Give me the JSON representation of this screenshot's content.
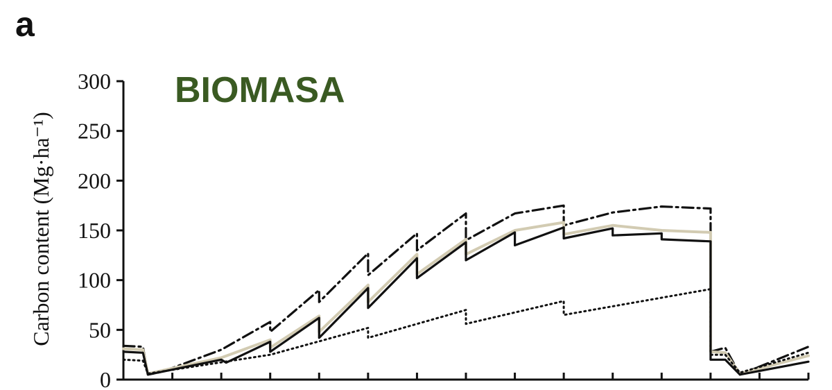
{
  "panel_label": "a",
  "colors": {
    "title": "#3a5a22",
    "axis": "#111111",
    "series_black": "#111111",
    "series_beige": "#d2cbb2"
  },
  "chart_data": {
    "type": "line",
    "title": "BIOMASA",
    "ylabel": "Carbon content (Mg·ha⁻¹)",
    "xlabel": "",
    "ylim": [
      0,
      300
    ],
    "xlim": [
      0,
      140
    ],
    "yticks": [
      0,
      50,
      100,
      150,
      200,
      250,
      300
    ],
    "xticks": [
      10,
      20,
      30,
      40,
      50,
      60,
      70,
      80,
      90,
      100,
      110,
      120,
      130,
      140
    ],
    "grid": false,
    "legend": "none",
    "series": [
      {
        "style": "dashdot",
        "color": "#111111",
        "points": [
          [
            0,
            34
          ],
          [
            4,
            33
          ],
          [
            5,
            5
          ],
          [
            8,
            8
          ],
          [
            20,
            30
          ],
          [
            30,
            58
          ],
          [
            30,
            48
          ],
          [
            40,
            90
          ],
          [
            40,
            78
          ],
          [
            50,
            127
          ],
          [
            50,
            105
          ],
          [
            60,
            147
          ],
          [
            60,
            130
          ],
          [
            70,
            167
          ],
          [
            70,
            140
          ],
          [
            80,
            167
          ],
          [
            90,
            175
          ],
          [
            90,
            155
          ],
          [
            100,
            168
          ],
          [
            110,
            174
          ],
          [
            120,
            172
          ],
          [
            120,
            28
          ],
          [
            123,
            32
          ],
          [
            126,
            5
          ],
          [
            140,
            33
          ]
        ]
      },
      {
        "style": "solid",
        "color": "#d2cbb2",
        "points": [
          [
            0,
            31
          ],
          [
            4,
            30
          ],
          [
            5,
            6
          ],
          [
            20,
            22
          ],
          [
            30,
            40
          ],
          [
            30,
            32
          ],
          [
            40,
            64
          ],
          [
            40,
            48
          ],
          [
            50,
            95
          ],
          [
            50,
            78
          ],
          [
            60,
            126
          ],
          [
            60,
            106
          ],
          [
            70,
            141
          ],
          [
            70,
            126
          ],
          [
            80,
            150
          ],
          [
            90,
            158
          ],
          [
            90,
            146
          ],
          [
            100,
            155
          ],
          [
            110,
            150
          ],
          [
            120,
            148
          ],
          [
            120,
            28
          ],
          [
            123,
            27
          ],
          [
            126,
            6
          ],
          [
            140,
            24
          ]
        ]
      },
      {
        "style": "solid",
        "color": "#111111",
        "points": [
          [
            0,
            28
          ],
          [
            4,
            27
          ],
          [
            5,
            5
          ],
          [
            20,
            20
          ],
          [
            21,
            17
          ],
          [
            30,
            38
          ],
          [
            30,
            28
          ],
          [
            40,
            62
          ],
          [
            40,
            42
          ],
          [
            50,
            92
          ],
          [
            50,
            72
          ],
          [
            60,
            122
          ],
          [
            60,
            102
          ],
          [
            70,
            138
          ],
          [
            70,
            120
          ],
          [
            80,
            148
          ],
          [
            80,
            135
          ],
          [
            90,
            153
          ],
          [
            90,
            142
          ],
          [
            100,
            152
          ],
          [
            100,
            145
          ],
          [
            110,
            147
          ],
          [
            110,
            141
          ],
          [
            120,
            139
          ],
          [
            120,
            20
          ],
          [
            123,
            20
          ],
          [
            126,
            5
          ],
          [
            140,
            18
          ]
        ]
      },
      {
        "style": "dotted",
        "color": "#111111",
        "points": [
          [
            0,
            20
          ],
          [
            4,
            19
          ],
          [
            5,
            6
          ],
          [
            30,
            25
          ],
          [
            50,
            52
          ],
          [
            50,
            42
          ],
          [
            70,
            70
          ],
          [
            70,
            56
          ],
          [
            90,
            79
          ],
          [
            90,
            65
          ],
          [
            120,
            91
          ],
          [
            120,
            25
          ],
          [
            123,
            25
          ],
          [
            126,
            7
          ],
          [
            140,
            27
          ]
        ]
      }
    ]
  }
}
